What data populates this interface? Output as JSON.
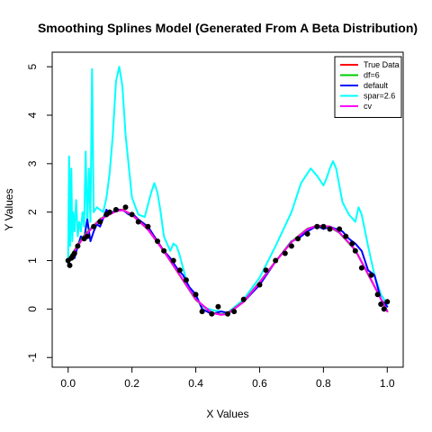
{
  "chart_data": {
    "type": "line",
    "title": "Smoothing Splines Model (Generated From A Beta Distribution)",
    "xlabel": "X Values",
    "ylabel": "Y Values",
    "xlim": [
      -0.05,
      1.05
    ],
    "ylim": [
      -1.2,
      5.3
    ],
    "xticks": [
      0.0,
      0.2,
      0.4,
      0.6,
      0.8,
      1.0
    ],
    "xtick_labels": [
      "0.0",
      "0.2",
      "0.4",
      "0.6",
      "0.8",
      "1.0"
    ],
    "yticks": [
      -1,
      0,
      1,
      2,
      3,
      4,
      5
    ],
    "ytick_labels": [
      "-1",
      "0",
      "1",
      "2",
      "3",
      "4",
      "5"
    ],
    "legend_position": "top-right",
    "legend": [
      {
        "label": "True Data",
        "color": "#ff0000"
      },
      {
        "label": "df=6",
        "color": "#00cd00"
      },
      {
        "label": "default",
        "color": "#0000ff"
      },
      {
        "label": "spar=2.6",
        "color": "#00ffff"
      },
      {
        "label": "cv",
        "color": "#ff00ff"
      }
    ],
    "points": {
      "name": "observed",
      "color": "#000000",
      "x": [
        0.0,
        0.005,
        0.01,
        0.015,
        0.02,
        0.03,
        0.05,
        0.06,
        0.08,
        0.1,
        0.12,
        0.13,
        0.15,
        0.18,
        0.2,
        0.22,
        0.25,
        0.28,
        0.3,
        0.33,
        0.35,
        0.37,
        0.4,
        0.42,
        0.45,
        0.47,
        0.5,
        0.52,
        0.55,
        0.6,
        0.62,
        0.65,
        0.68,
        0.7,
        0.72,
        0.75,
        0.78,
        0.8,
        0.82,
        0.85,
        0.87,
        0.89,
        0.9,
        0.92,
        0.95,
        0.97,
        0.98,
        0.99,
        1.0
      ],
      "y": [
        1.0,
        0.9,
        1.05,
        1.1,
        1.15,
        1.3,
        1.45,
        1.5,
        1.7,
        1.8,
        1.95,
        2.0,
        2.05,
        2.1,
        1.95,
        1.8,
        1.7,
        1.4,
        1.2,
        1.0,
        0.8,
        0.6,
        0.3,
        -0.05,
        -0.1,
        0.05,
        -0.1,
        -0.05,
        0.2,
        0.5,
        0.8,
        1.0,
        1.15,
        1.3,
        1.45,
        1.55,
        1.7,
        1.7,
        1.65,
        1.65,
        1.5,
        1.35,
        1.2,
        0.85,
        0.7,
        0.3,
        0.1,
        0.0,
        0.15
      ]
    },
    "series": [
      {
        "name": "True Data",
        "color": "#ff0000",
        "x": [
          0.0,
          0.05,
          0.1,
          0.15,
          0.17,
          0.2,
          0.25,
          0.3,
          0.35,
          0.4,
          0.45,
          0.48,
          0.5,
          0.55,
          0.6,
          0.65,
          0.7,
          0.75,
          0.78,
          0.82,
          0.85,
          0.9,
          0.95,
          1.0
        ],
        "y": [
          1.0,
          1.5,
          1.85,
          2.02,
          2.05,
          1.95,
          1.65,
          1.2,
          0.7,
          0.2,
          -0.08,
          -0.12,
          -0.1,
          0.15,
          0.55,
          0.98,
          1.38,
          1.65,
          1.72,
          1.7,
          1.58,
          1.22,
          0.6,
          -0.05
        ]
      },
      {
        "name": "df=6",
        "color": "#00cd00",
        "x": [
          0.0,
          0.05,
          0.1,
          0.15,
          0.17,
          0.2,
          0.25,
          0.3,
          0.35,
          0.4,
          0.45,
          0.48,
          0.5,
          0.55,
          0.6,
          0.65,
          0.7,
          0.75,
          0.78,
          0.82,
          0.85,
          0.9,
          0.95,
          1.0
        ],
        "y": [
          1.02,
          1.52,
          1.86,
          2.02,
          2.04,
          1.94,
          1.64,
          1.19,
          0.69,
          0.19,
          -0.08,
          -0.11,
          -0.09,
          0.16,
          0.56,
          0.99,
          1.39,
          1.66,
          1.72,
          1.69,
          1.57,
          1.21,
          0.59,
          -0.04
        ]
      },
      {
        "name": "default",
        "color": "#0000ff",
        "x": [
          0.0,
          0.01,
          0.02,
          0.03,
          0.04,
          0.05,
          0.06,
          0.07,
          0.08,
          0.09,
          0.1,
          0.12,
          0.13,
          0.15,
          0.17,
          0.19,
          0.2,
          0.22,
          0.25,
          0.28,
          0.3,
          0.32,
          0.34,
          0.36,
          0.38,
          0.4,
          0.42,
          0.45,
          0.48,
          0.5,
          0.55,
          0.6,
          0.65,
          0.7,
          0.72,
          0.75,
          0.78,
          0.8,
          0.82,
          0.84,
          0.86,
          0.88,
          0.9,
          0.92,
          0.94,
          0.96,
          0.98,
          1.0
        ],
        "y": [
          0.95,
          1.1,
          1.05,
          1.3,
          1.5,
          1.45,
          1.85,
          1.4,
          1.6,
          1.75,
          1.7,
          2.05,
          1.95,
          2.05,
          2.05,
          1.95,
          1.98,
          1.85,
          1.7,
          1.4,
          1.2,
          1.05,
          0.85,
          0.7,
          0.45,
          0.3,
          0.0,
          -0.1,
          -0.05,
          -0.08,
          0.15,
          0.5,
          0.98,
          1.4,
          1.45,
          1.6,
          1.72,
          1.65,
          1.7,
          1.65,
          1.6,
          1.45,
          1.35,
          1.2,
          0.8,
          0.7,
          0.2,
          0.05
        ]
      },
      {
        "name": "spar=2.6",
        "color": "#00ffff",
        "x": [
          0.0,
          0.003,
          0.006,
          0.01,
          0.013,
          0.016,
          0.02,
          0.025,
          0.03,
          0.035,
          0.04,
          0.045,
          0.05,
          0.055,
          0.06,
          0.065,
          0.07,
          0.075,
          0.08,
          0.09,
          0.1,
          0.11,
          0.12,
          0.13,
          0.14,
          0.15,
          0.16,
          0.17,
          0.18,
          0.2,
          0.22,
          0.24,
          0.26,
          0.27,
          0.28,
          0.29,
          0.3,
          0.31,
          0.32,
          0.33,
          0.34,
          0.35,
          0.36,
          0.37,
          0.38,
          0.4,
          0.42,
          0.45,
          0.48,
          0.5,
          0.55,
          0.6,
          0.65,
          0.7,
          0.73,
          0.76,
          0.78,
          0.8,
          0.81,
          0.82,
          0.83,
          0.84,
          0.86,
          0.88,
          0.9,
          0.91,
          0.92,
          0.94,
          0.96,
          0.98,
          1.0
        ],
        "y": [
          1.0,
          3.15,
          1.3,
          2.9,
          1.4,
          2.0,
          1.6,
          2.25,
          1.5,
          1.8,
          1.6,
          2.0,
          1.7,
          3.25,
          1.7,
          2.9,
          1.8,
          4.95,
          2.0,
          2.1,
          2.05,
          2.0,
          2.3,
          2.8,
          3.6,
          4.7,
          5.0,
          4.6,
          3.6,
          2.3,
          1.95,
          1.9,
          2.4,
          2.6,
          2.4,
          2.0,
          1.5,
          1.35,
          1.2,
          1.35,
          1.3,
          1.1,
          0.85,
          0.6,
          0.4,
          0.25,
          0.05,
          -0.02,
          -0.05,
          -0.08,
          0.2,
          0.65,
          1.3,
          2.0,
          2.6,
          2.9,
          2.75,
          2.55,
          2.7,
          2.9,
          3.05,
          2.9,
          2.2,
          1.95,
          1.8,
          2.1,
          1.95,
          1.3,
          0.7,
          0.3,
          0.1
        ]
      },
      {
        "name": "cv",
        "color": "#ff00ff",
        "x": [
          0.0,
          0.05,
          0.1,
          0.15,
          0.17,
          0.2,
          0.25,
          0.3,
          0.35,
          0.4,
          0.45,
          0.48,
          0.5,
          0.55,
          0.6,
          0.65,
          0.7,
          0.75,
          0.78,
          0.82,
          0.85,
          0.9,
          0.95,
          1.0
        ],
        "y": [
          1.0,
          1.5,
          1.85,
          2.02,
          2.04,
          1.95,
          1.64,
          1.19,
          0.7,
          0.2,
          -0.08,
          -0.12,
          -0.1,
          0.15,
          0.55,
          0.98,
          1.38,
          1.65,
          1.72,
          1.7,
          1.58,
          1.22,
          0.6,
          -0.05
        ]
      }
    ]
  }
}
